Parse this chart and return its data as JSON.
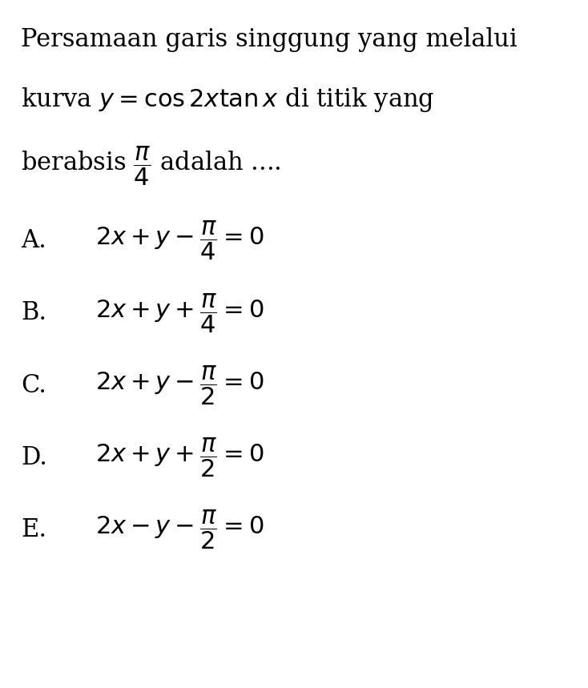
{
  "background_color": "#ffffff",
  "text_color": "#000000",
  "title_line1": "Persamaan garis singgung yang melalui",
  "title_line2": "kurva $y = \\cos 2x \\tan x$ di titik yang",
  "title_line3": "berabsis $\\dfrac{\\pi}{4}$ adalah ....",
  "options": [
    {
      "label": "A.",
      "formula": "$2x + y - \\dfrac{\\pi}{4} = 0$"
    },
    {
      "label": "B.",
      "formula": "$2x + y + \\dfrac{\\pi}{4} = 0$"
    },
    {
      "label": "C.",
      "formula": "$2x + y - \\dfrac{\\pi}{2} = 0$"
    },
    {
      "label": "D.",
      "formula": "$2x + y + \\dfrac{\\pi}{2} = 0$"
    },
    {
      "label": "E.",
      "formula": "$2x - y - \\dfrac{\\pi}{2} = 0$"
    }
  ],
  "figsize": [
    7.34,
    8.59
  ],
  "dpi": 100,
  "fontsize_title": 22,
  "fontsize_options": 22,
  "fontsize_label": 22
}
